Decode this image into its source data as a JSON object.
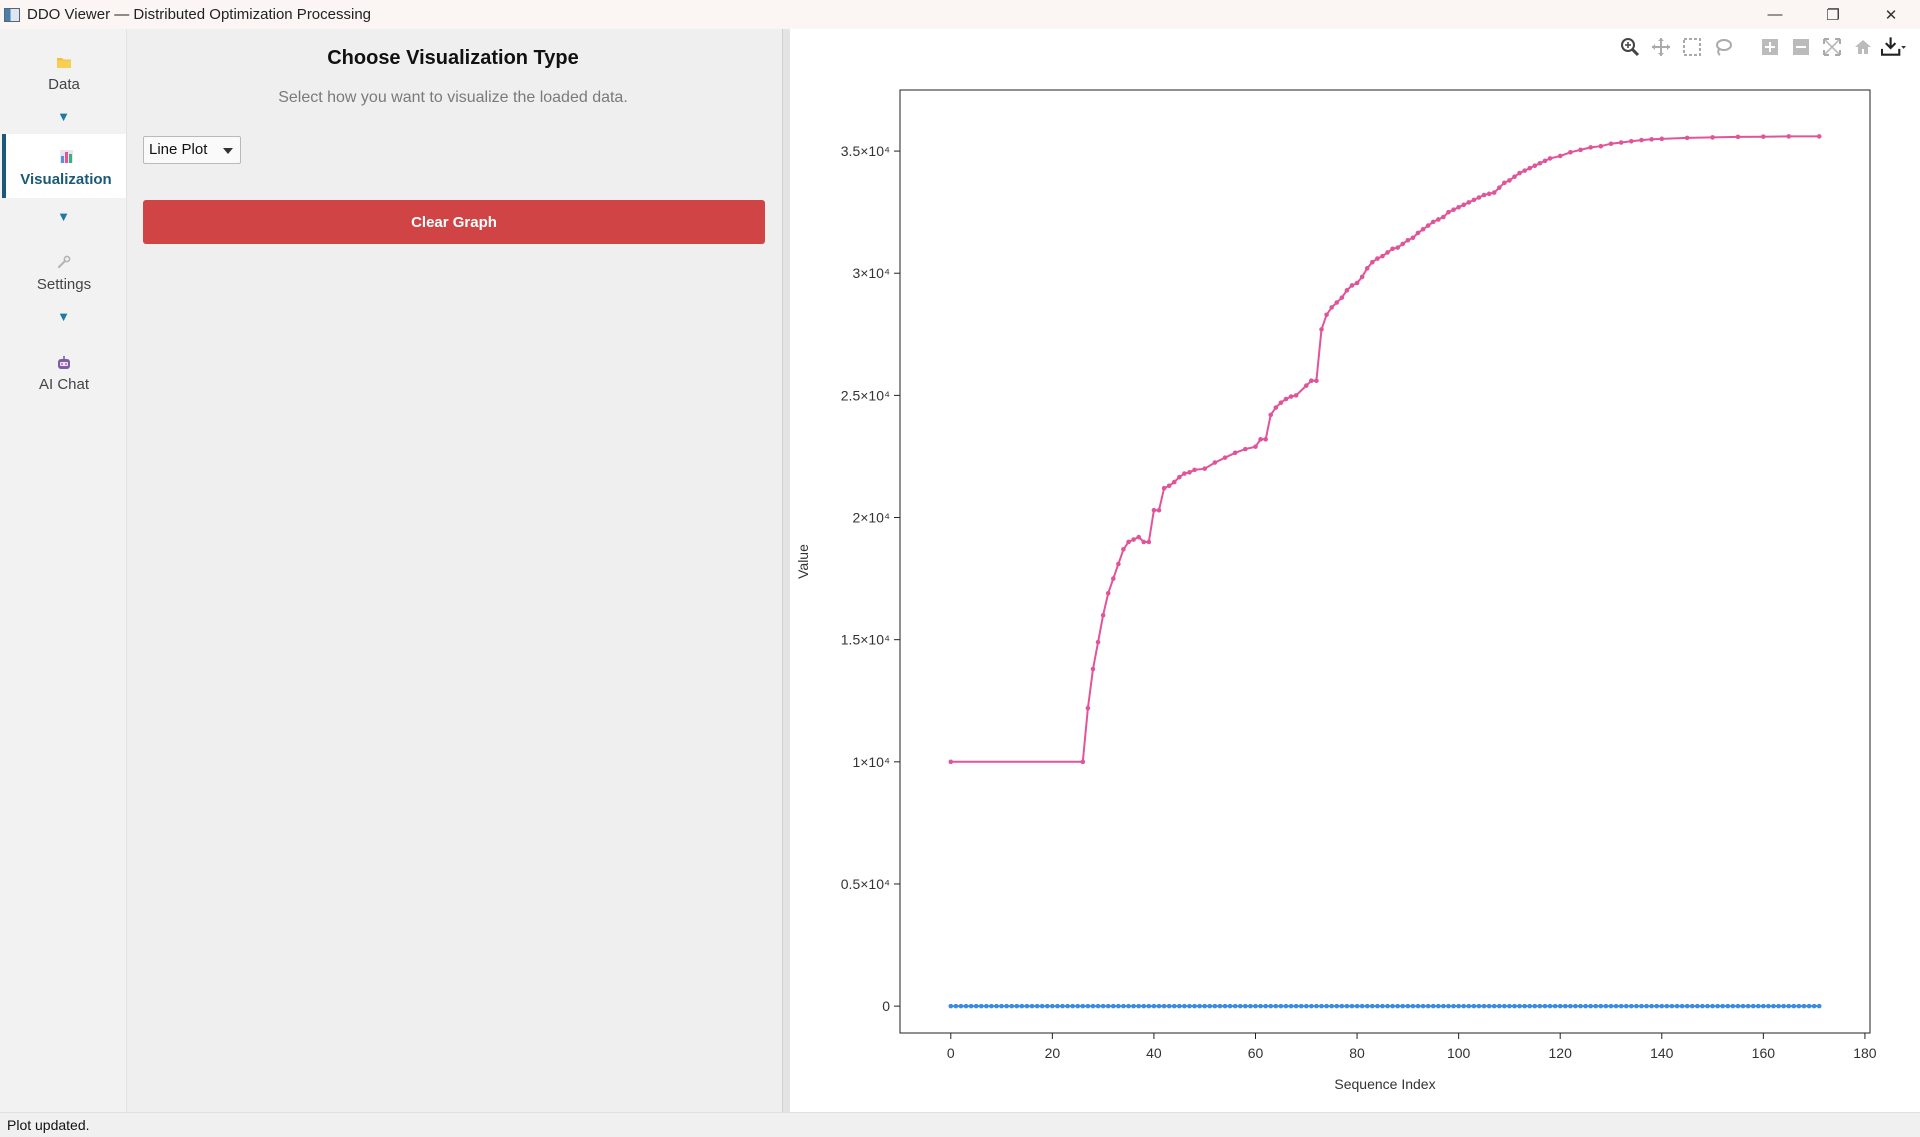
{
  "window": {
    "title": "DDO Viewer — Distributed Optimization Processing",
    "controls": {
      "minimize": "—",
      "restore": "❐",
      "close": "✕"
    }
  },
  "sidebar": {
    "items": [
      {
        "label": "Data",
        "icon": "folder-icon",
        "active": false
      },
      {
        "label": "Visualization",
        "icon": "bar-chart-icon",
        "active": true
      },
      {
        "label": "Settings",
        "icon": "wrench-icon",
        "active": false
      },
      {
        "label": "AI Chat",
        "icon": "robot-icon",
        "active": false
      }
    ],
    "arrow": "▼"
  },
  "panel": {
    "title": "Choose Visualization Type",
    "subtitle": "Select how you want to visualize the loaded data.",
    "viz_type": {
      "selected": "Line Plot"
    },
    "clear_label": "Clear Graph"
  },
  "colors": {
    "accent": "#1a5a78",
    "danger": "#d14445",
    "series_pink": "#e0559a",
    "series_blue": "#3b8ce0"
  },
  "modebar": [
    "zoom-icon",
    "pan-icon",
    "box-select-icon",
    "lasso-icon",
    "zoom-in-icon",
    "zoom-out-icon",
    "autoscale-icon",
    "reset-home-icon",
    "download-icon"
  ],
  "status": {
    "text": "Plot updated."
  },
  "chart_data": {
    "type": "line",
    "title": "",
    "xlabel": "Sequence Index",
    "ylabel": "Value",
    "xlim": [
      -10,
      181
    ],
    "ylim": [
      -1100,
      37500
    ],
    "xticks": [
      0,
      20,
      40,
      60,
      80,
      100,
      120,
      140,
      160,
      180
    ],
    "yticks": [
      {
        "value": 0,
        "label": "0"
      },
      {
        "value": 5000,
        "label": "0.5×10⁴"
      },
      {
        "value": 10000,
        "label": "1×10⁴"
      },
      {
        "value": 15000,
        "label": "1.5×10⁴"
      },
      {
        "value": 20000,
        "label": "2×10⁴"
      },
      {
        "value": 25000,
        "label": "2.5×10⁴"
      },
      {
        "value": 30000,
        "label": "3×10⁴"
      },
      {
        "value": 35000,
        "label": "3.5×10⁴"
      }
    ],
    "grid": false,
    "legend": "none",
    "series": [
      {
        "color": "#e0559a",
        "x": [
          0,
          26,
          27,
          28,
          29,
          30,
          31,
          32,
          33,
          34,
          35,
          36,
          37,
          38,
          39,
          40,
          41,
          42,
          43,
          44,
          45,
          46,
          47,
          48,
          50,
          52,
          54,
          56,
          58,
          60,
          61,
          62,
          63,
          64,
          65,
          66,
          67,
          68,
          70,
          71,
          72,
          73,
          74,
          75,
          76,
          77,
          78,
          79,
          80,
          81,
          82,
          83,
          84,
          85,
          86,
          87,
          88,
          89,
          90,
          91,
          92,
          93,
          94,
          95,
          96,
          97,
          98,
          99,
          100,
          101,
          102,
          103,
          104,
          105,
          106,
          107,
          108,
          109,
          110,
          111,
          112,
          113,
          114,
          115,
          116,
          117,
          118,
          120,
          122,
          124,
          126,
          128,
          130,
          132,
          134,
          136,
          138,
          140,
          145,
          150,
          155,
          160,
          165,
          171
        ],
        "y": [
          10000,
          10000,
          12200,
          13800,
          14900,
          16000,
          16900,
          17500,
          18100,
          18700,
          19000,
          19100,
          19200,
          19000,
          19000,
          20300,
          20300,
          21200,
          21300,
          21450,
          21650,
          21800,
          21850,
          21950,
          22000,
          22250,
          22450,
          22650,
          22800,
          22900,
          23200,
          23200,
          24200,
          24500,
          24700,
          24850,
          24950,
          25000,
          25400,
          25600,
          25600,
          27700,
          28300,
          28600,
          28800,
          29000,
          29300,
          29500,
          29600,
          29850,
          30200,
          30450,
          30600,
          30700,
          30850,
          31000,
          31050,
          31200,
          31350,
          31450,
          31650,
          31800,
          31950,
          32100,
          32200,
          32300,
          32500,
          32600,
          32700,
          32800,
          32900,
          33000,
          33100,
          33200,
          33250,
          33300,
          33500,
          33700,
          33800,
          33950,
          34100,
          34200,
          34300,
          34400,
          34500,
          34600,
          34700,
          34800,
          34950,
          35050,
          35150,
          35200,
          35300,
          35350,
          35400,
          35450,
          35480,
          35500,
          35540,
          35560,
          35580,
          35590,
          35600,
          35600
        ]
      },
      {
        "color": "#3b8ce0",
        "x": [
          0,
          171
        ],
        "y": [
          0,
          0
        ],
        "dense": true
      }
    ]
  }
}
